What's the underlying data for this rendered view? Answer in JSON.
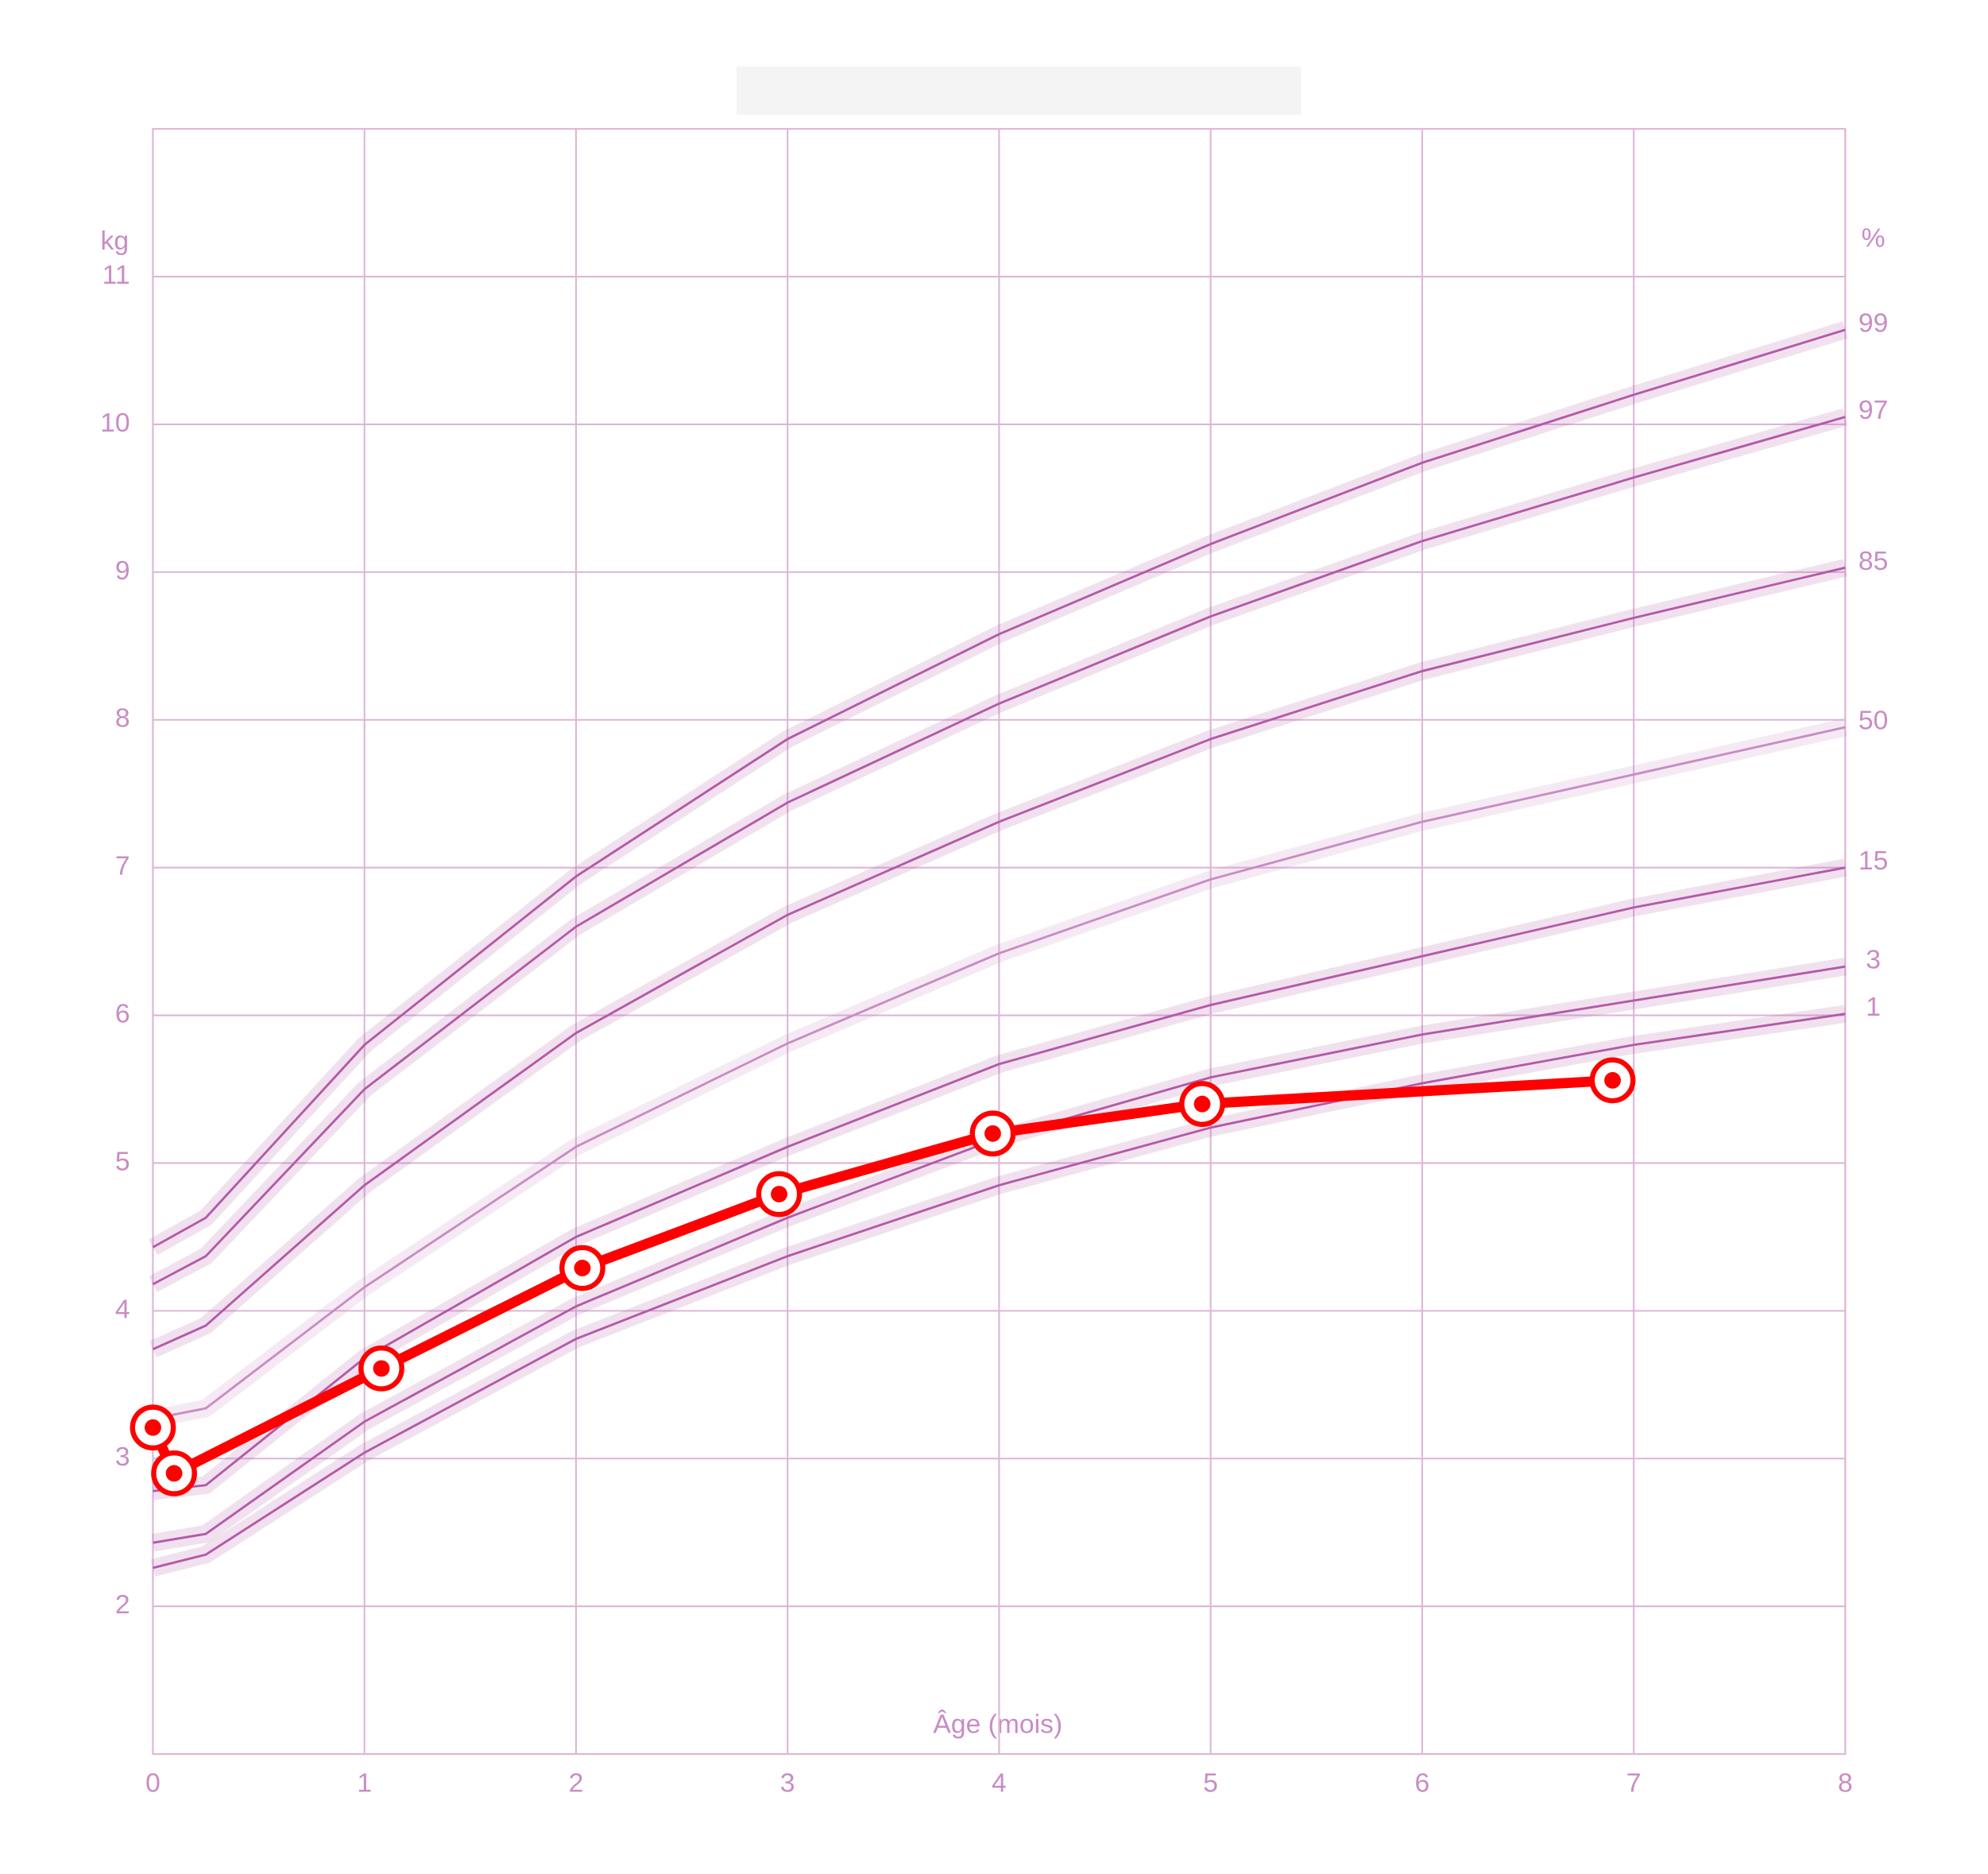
{
  "chart_data": {
    "type": "line",
    "x_label": "Âge (mois)",
    "y_label": "kg",
    "y2_label": "%",
    "xlim": [
      0,
      8
    ],
    "ylim": [
      1,
      12
    ],
    "xticks": [
      0,
      1,
      2,
      3,
      4,
      5,
      6,
      7,
      8
    ],
    "yticks": [
      2,
      3,
      4,
      5,
      6,
      7,
      8,
      9,
      10,
      11
    ],
    "grid": true,
    "series": [
      {
        "name": "99",
        "color": "#b45aa8",
        "x": [
          0,
          0.25,
          1,
          2,
          3,
          4,
          5,
          6,
          7,
          8
        ],
        "values": [
          4.43,
          4.63,
          5.8,
          6.94,
          7.87,
          8.58,
          9.19,
          9.74,
          10.2,
          10.64
        ]
      },
      {
        "name": "97",
        "color": "#b45aa8",
        "x": [
          0,
          0.25,
          1,
          2,
          3,
          4,
          5,
          6,
          7,
          8
        ],
        "values": [
          4.18,
          4.37,
          5.5,
          6.6,
          7.44,
          8.11,
          8.7,
          9.21,
          9.64,
          10.05
        ]
      },
      {
        "name": "85",
        "color": "#b45aa8",
        "x": [
          0,
          0.25,
          1,
          2,
          3,
          4,
          5,
          6,
          7,
          8
        ],
        "values": [
          3.74,
          3.9,
          4.85,
          5.88,
          6.68,
          7.31,
          7.87,
          8.33,
          8.69,
          9.03
        ]
      },
      {
        "name": "50",
        "color": "#c98cc4",
        "x": [
          0,
          0.25,
          1,
          2,
          3,
          4,
          5,
          6,
          7,
          8
        ],
        "values": [
          3.27,
          3.34,
          4.16,
          5.11,
          5.81,
          6.42,
          6.92,
          7.31,
          7.63,
          7.95
        ]
      },
      {
        "name": "15",
        "color": "#b45aa8",
        "x": [
          0,
          0.25,
          1,
          2,
          3,
          4,
          5,
          6,
          7,
          8
        ],
        "values": [
          2.78,
          2.82,
          3.68,
          4.5,
          5.11,
          5.67,
          6.07,
          6.4,
          6.73,
          7.0
        ]
      },
      {
        "name": "3",
        "color": "#b45aa8",
        "x": [
          0,
          0.25,
          1,
          2,
          3,
          4,
          5,
          6,
          7,
          8
        ],
        "values": [
          2.43,
          2.49,
          3.25,
          4.03,
          4.63,
          5.17,
          5.58,
          5.87,
          6.1,
          6.33
        ]
      },
      {
        "name": "1",
        "color": "#b45aa8",
        "x": [
          0,
          0.25,
          1,
          2,
          3,
          4,
          5,
          6,
          7,
          8
        ],
        "values": [
          2.26,
          2.35,
          3.04,
          3.81,
          4.37,
          4.85,
          5.24,
          5.54,
          5.8,
          6.01
        ]
      }
    ],
    "measurements": {
      "color": "#ff0000",
      "x": [
        0,
        0.1,
        1.08,
        2.03,
        2.96,
        3.97,
        4.96,
        6.9
      ],
      "values": [
        3.21,
        2.9,
        3.61,
        4.29,
        4.79,
        5.2,
        5.4,
        5.56
      ]
    }
  }
}
